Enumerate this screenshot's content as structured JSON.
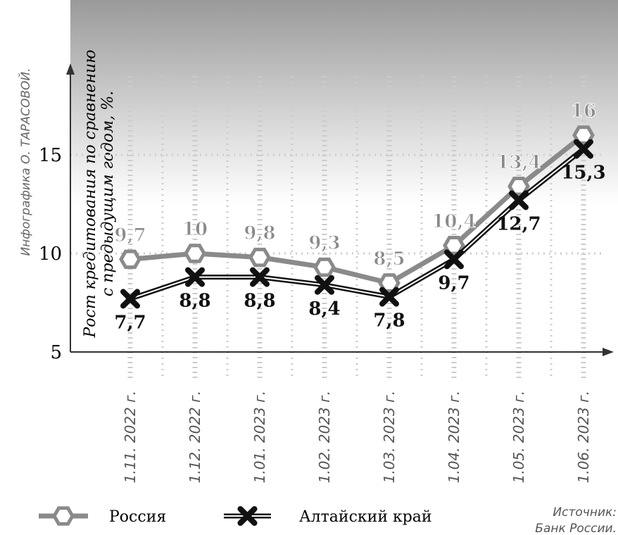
{
  "chart_data": {
    "type": "line",
    "credit": "Инфографика О. ТАРАСОВОЙ.",
    "y_label": [
      "Рост кредитования по сравнению",
      "с предыдущим годом, %."
    ],
    "source": [
      "Источник:",
      "Банк России."
    ],
    "categories": [
      "1.11. 2022 г.",
      "1.12. 2022 г.",
      "1.01. 2023 г.",
      "1.02. 2023 г.",
      "1.03. 2023 г.",
      "1.04. 2023 г.",
      "1.05. 2023 г.",
      "1.06. 2023 г."
    ],
    "series": [
      {
        "name": "Россия",
        "color": "#8a8a8a",
        "marker": "hexagon",
        "values": [
          9.7,
          10,
          9.8,
          9.3,
          8.5,
          10.4,
          13.4,
          16
        ],
        "value_labels": [
          "9,7",
          "10",
          "9,8",
          "9,3",
          "8,5",
          "10,4",
          "13,4",
          "16"
        ]
      },
      {
        "name": "Алтайский край",
        "color": "#111111",
        "marker": "x",
        "values": [
          7.7,
          8.8,
          8.8,
          8.4,
          7.8,
          9.7,
          12.7,
          15.3
        ],
        "value_labels": [
          "7,7",
          "8,8",
          "8,8",
          "8,4",
          "7,8",
          "9,7",
          "12,7",
          "15,3"
        ]
      }
    ],
    "ylim": [
      5,
      19
    ],
    "yticks": [
      5,
      10,
      15
    ],
    "grid": true
  }
}
